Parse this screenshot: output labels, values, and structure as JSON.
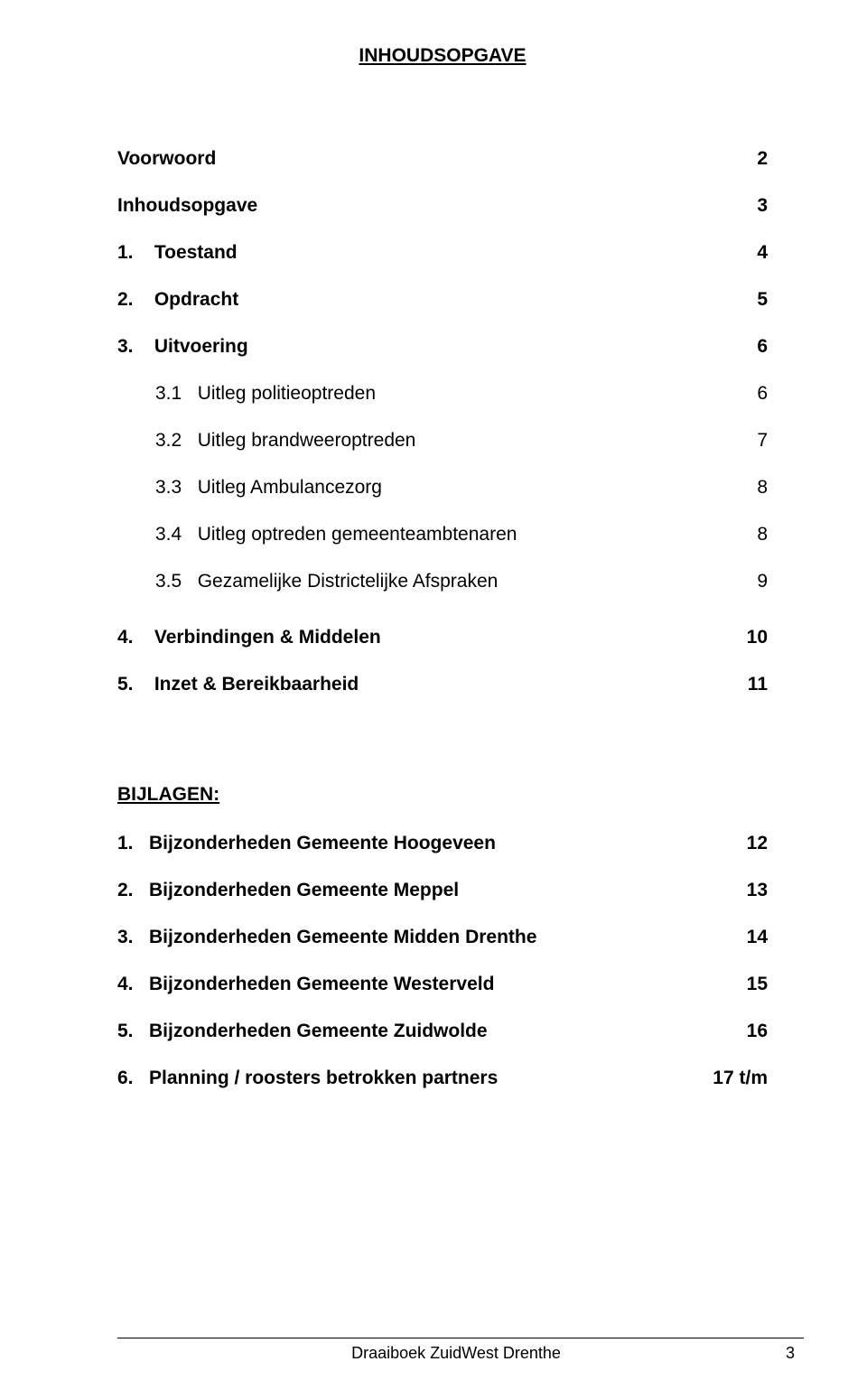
{
  "title": "INHOUDSOPGAVE",
  "toc": {
    "main": [
      {
        "label": "Voorwoord",
        "page": "2"
      },
      {
        "label": "Inhoudsopgave",
        "page": "3"
      },
      {
        "label": "1.    Toestand",
        "page": "4"
      },
      {
        "label": "2.    Opdracht",
        "page": "5"
      },
      {
        "label": "3.    Uitvoering",
        "page": "6"
      }
    ],
    "sub3": [
      {
        "label": "3.1   Uitleg politieoptreden",
        "page": "6"
      },
      {
        "label": "3.2   Uitleg brandweeroptreden",
        "page": "7"
      },
      {
        "label": "3.3   Uitleg Ambulancezorg",
        "page": "8"
      },
      {
        "label": "3.4   Uitleg optreden gemeenteambtenaren",
        "page": "8"
      },
      {
        "label": "3.5   Gezamelijke Districtelijke Afspraken",
        "page": "9"
      }
    ],
    "main2": [
      {
        "label": "4.    Verbindingen & Middelen",
        "page": "10"
      },
      {
        "label": "5.    Inzet & Bereikbaarheid",
        "page": "11"
      }
    ]
  },
  "bijlagen": {
    "title": "BIJLAGEN:",
    "items": [
      {
        "label": "1.   Bijzonderheden Gemeente Hoogeveen",
        "page": "12"
      },
      {
        "label": "2.   Bijzonderheden Gemeente Meppel",
        "page": "13"
      },
      {
        "label": "3.   Bijzonderheden Gemeente Midden Drenthe",
        "page": "14"
      },
      {
        "label": "4.   Bijzonderheden Gemeente Westerveld",
        "page": "15"
      },
      {
        "label": "5.   Bijzonderheden Gemeente Zuidwolde",
        "page": "16"
      },
      {
        "label": "6.   Planning / roosters betrokken partners",
        "page": "17 t/m"
      }
    ]
  },
  "footer": {
    "center": "Draaiboek ZuidWest Drenthe",
    "pageNum": "3"
  }
}
